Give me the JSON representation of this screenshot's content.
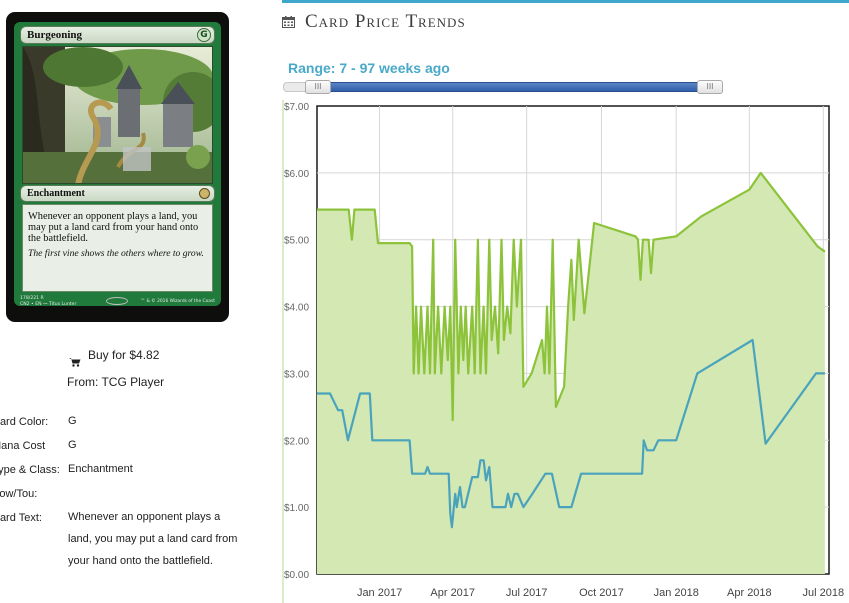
{
  "card": {
    "name": "Burgeoning",
    "mana_symbol": "G",
    "type_line": "Enchantment",
    "rules_text": "Whenever an opponent plays a land, you may put a land card from your hand onto the battlefield.",
    "flavor_text": "The first vine shows the others where to grow.",
    "collector_line1": "178/221 R",
    "collector_line2": "CN2 • EN ⁓ Titus Lunter",
    "copyright": "™ & © 2016 Wizards of the Coast"
  },
  "buy": {
    "label": "Buy for $4.82",
    "source": "From: TCG Player"
  },
  "details": [
    {
      "label": "Card Color:",
      "value": "G"
    },
    {
      "label": "Mana Cost",
      "value": "G"
    },
    {
      "label": "Type & Class:",
      "value": "Enchantment"
    },
    {
      "label": "Pow/Tou:",
      "value": ""
    },
    {
      "label": "Card Text:",
      "value": "Whenever an opponent plays a land, you may put a land card from your hand onto the battlefield."
    }
  ],
  "header": {
    "title": "Card Price Trends",
    "range_label": "Range: 7 - 97 weeks ago"
  },
  "slider": {
    "range_start_weeks": 97,
    "range_end_weeks": 7,
    "handle_glyph": "III"
  },
  "colors": {
    "accent": "#3fa7cc",
    "upper_line": "#8cc33a",
    "upper_fill": "#d3e8b2",
    "lower_line": "#4aa3bd",
    "slider_fill": "#2f5ea8"
  },
  "chart_data": {
    "type": "area",
    "ylim": [
      0,
      7
    ],
    "y_ticks": [
      "$0.00",
      "$1.00",
      "$2.00",
      "$3.00",
      "$4.00",
      "$5.00",
      "$6.00",
      "$7.00"
    ],
    "x_ticks": [
      "Jan 2017",
      "Apr 2017",
      "Jul 2017",
      "Oct 2017",
      "Jan 2018",
      "Apr 2018",
      "Jul 2018"
    ],
    "x_tick_dates": [
      "2017-01-01",
      "2017-04-01",
      "2017-07-01",
      "2017-10-01",
      "2018-01-01",
      "2018-04-01",
      "2018-07-01"
    ],
    "x_start": "2016-10-16",
    "x_end": "2018-07-08",
    "grid": true,
    "series": [
      {
        "points": [
          [
            "2016-10-16",
            5.45
          ],
          [
            "2016-11-24",
            5.45
          ],
          [
            "2016-11-28",
            5.0
          ],
          [
            "2016-12-01",
            5.45
          ],
          [
            "2016-12-26",
            5.45
          ],
          [
            "2016-12-30",
            4.95
          ],
          [
            "2017-02-07",
            4.95
          ],
          [
            "2017-02-10",
            4.9
          ],
          [
            "2017-02-12",
            3.0
          ],
          [
            "2017-02-15",
            4.0
          ],
          [
            "2017-02-18",
            3.0
          ],
          [
            "2017-02-21",
            4.0
          ],
          [
            "2017-02-25",
            3.0
          ],
          [
            "2017-03-01",
            4.0
          ],
          [
            "2017-03-04",
            3.0
          ],
          [
            "2017-03-08",
            5.0
          ],
          [
            "2017-03-10",
            3.0
          ],
          [
            "2017-03-14",
            4.0
          ],
          [
            "2017-03-18",
            3.0
          ],
          [
            "2017-03-22",
            4.0
          ],
          [
            "2017-03-26",
            3.2
          ],
          [
            "2017-03-29",
            4.0
          ],
          [
            "2017-04-01",
            2.3
          ],
          [
            "2017-04-04",
            5.0
          ],
          [
            "2017-04-08",
            3.0
          ],
          [
            "2017-04-11",
            4.0
          ],
          [
            "2017-04-14",
            3.2
          ],
          [
            "2017-04-17",
            4.0
          ],
          [
            "2017-04-20",
            3.0
          ],
          [
            "2017-04-25",
            4.0
          ],
          [
            "2017-04-28",
            3.0
          ],
          [
            "2017-05-02",
            5.0
          ],
          [
            "2017-05-05",
            3.0
          ],
          [
            "2017-05-09",
            4.0
          ],
          [
            "2017-05-12",
            3.0
          ],
          [
            "2017-05-16",
            5.0
          ],
          [
            "2017-05-19",
            3.5
          ],
          [
            "2017-05-23",
            4.0
          ],
          [
            "2017-05-27",
            3.3
          ],
          [
            "2017-05-31",
            5.0
          ],
          [
            "2017-06-03",
            3.5
          ],
          [
            "2017-06-07",
            4.0
          ],
          [
            "2017-06-11",
            3.6
          ],
          [
            "2017-06-15",
            5.0
          ],
          [
            "2017-06-19",
            4.0
          ],
          [
            "2017-06-24",
            5.0
          ],
          [
            "2017-06-27",
            2.8
          ],
          [
            "2017-07-07",
            3.0
          ],
          [
            "2017-07-20",
            3.5
          ],
          [
            "2017-07-23",
            3.0
          ],
          [
            "2017-07-26",
            4.0
          ],
          [
            "2017-07-29",
            3.0
          ],
          [
            "2017-08-02",
            5.0
          ],
          [
            "2017-08-06",
            2.5
          ],
          [
            "2017-08-16",
            2.8
          ],
          [
            "2017-08-21",
            4.0
          ],
          [
            "2017-08-25",
            4.7
          ],
          [
            "2017-08-28",
            3.8
          ],
          [
            "2017-09-03",
            5.0
          ],
          [
            "2017-09-10",
            3.9
          ],
          [
            "2017-09-22",
            5.25
          ],
          [
            "2017-11-12",
            5.05
          ],
          [
            "2017-11-15",
            5.0
          ],
          [
            "2017-11-18",
            4.4
          ],
          [
            "2017-11-21",
            5.0
          ],
          [
            "2017-11-28",
            5.0
          ],
          [
            "2017-12-01",
            4.5
          ],
          [
            "2017-12-04",
            5.0
          ],
          [
            "2018-01-01",
            5.05
          ],
          [
            "2018-02-01",
            5.35
          ],
          [
            "2018-04-01",
            5.75
          ],
          [
            "2018-04-15",
            6.0
          ],
          [
            "2018-06-24",
            4.9
          ],
          [
            "2018-07-03",
            4.82
          ]
        ]
      },
      {
        "points": [
          [
            "2016-10-16",
            2.7
          ],
          [
            "2016-11-01",
            2.7
          ],
          [
            "2016-11-11",
            2.45
          ],
          [
            "2016-11-16",
            2.45
          ],
          [
            "2016-11-23",
            2.0
          ],
          [
            "2016-12-08",
            2.7
          ],
          [
            "2016-12-20",
            2.7
          ],
          [
            "2016-12-23",
            2.0
          ],
          [
            "2017-02-07",
            2.0
          ],
          [
            "2017-02-10",
            1.5
          ],
          [
            "2017-02-26",
            1.5
          ],
          [
            "2017-03-01",
            1.6
          ],
          [
            "2017-03-04",
            1.5
          ],
          [
            "2017-03-27",
            1.5
          ],
          [
            "2017-03-29",
            0.9
          ],
          [
            "2017-03-31",
            0.7
          ],
          [
            "2017-04-04",
            1.2
          ],
          [
            "2017-04-06",
            1.0
          ],
          [
            "2017-04-10",
            1.3
          ],
          [
            "2017-04-13",
            1.0
          ],
          [
            "2017-04-16",
            1.0
          ],
          [
            "2017-04-25",
            1.45
          ],
          [
            "2017-05-02",
            1.45
          ],
          [
            "2017-05-05",
            1.7
          ],
          [
            "2017-05-09",
            1.7
          ],
          [
            "2017-05-12",
            1.4
          ],
          [
            "2017-05-16",
            1.6
          ],
          [
            "2017-05-20",
            1.0
          ],
          [
            "2017-06-05",
            1.0
          ],
          [
            "2017-06-08",
            1.2
          ],
          [
            "2017-06-12",
            1.0
          ],
          [
            "2017-06-16",
            1.2
          ],
          [
            "2017-06-20",
            1.2
          ],
          [
            "2017-06-27",
            1.0
          ],
          [
            "2017-07-08",
            1.2
          ],
          [
            "2017-07-24",
            1.5
          ],
          [
            "2017-08-01",
            1.5
          ],
          [
            "2017-08-10",
            1.0
          ],
          [
            "2017-08-25",
            1.0
          ],
          [
            "2017-09-06",
            1.5
          ],
          [
            "2017-11-20",
            1.5
          ],
          [
            "2017-11-22",
            2.0
          ],
          [
            "2017-11-26",
            1.85
          ],
          [
            "2017-12-04",
            1.85
          ],
          [
            "2017-12-10",
            2.0
          ],
          [
            "2018-01-01",
            2.0
          ],
          [
            "2018-01-27",
            3.0
          ],
          [
            "2018-04-05",
            3.5
          ],
          [
            "2018-04-21",
            1.95
          ],
          [
            "2018-06-22",
            3.0
          ],
          [
            "2018-07-03",
            3.0
          ]
        ]
      }
    ]
  }
}
